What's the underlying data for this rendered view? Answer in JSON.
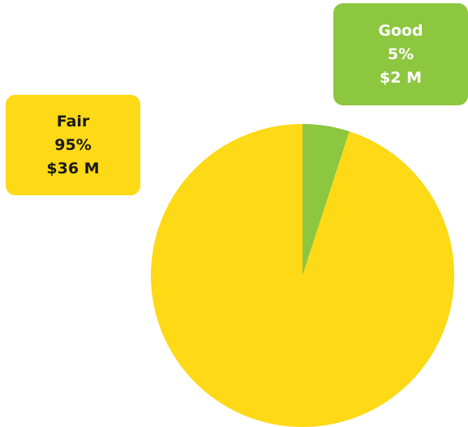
{
  "chart_data": {
    "type": "pie",
    "title": "",
    "slices": [
      {
        "label": "Good",
        "percent": 5,
        "value_label": "$2 M",
        "value": 2,
        "color": "#8DC63F"
      },
      {
        "label": "Fair",
        "percent": 95,
        "value_label": "$36 M",
        "value": 36,
        "color": "#FDD916"
      }
    ]
  },
  "callouts": {
    "good": {
      "label": "Good",
      "percent": "5%",
      "amount": "$2 M"
    },
    "fair": {
      "label": "Fair",
      "percent": "95%",
      "amount": "$36 M"
    }
  }
}
